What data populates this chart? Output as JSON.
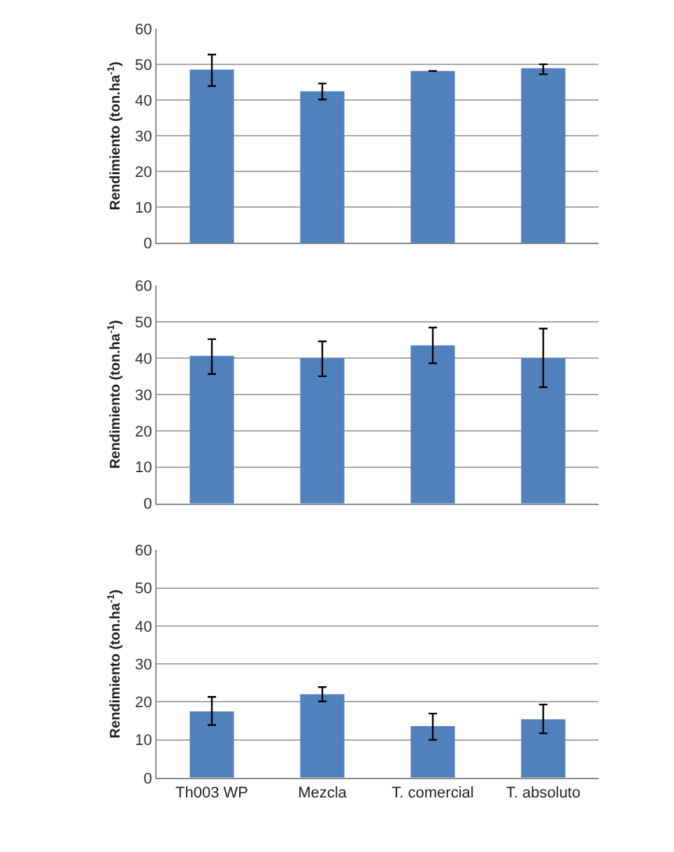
{
  "chart_data": [
    {
      "type": "bar",
      "ylabel": "Rendimiento (ton.ha$^{-1}$)",
      "categories": [
        null,
        null,
        null,
        null
      ],
      "values": [
        48.6,
        42.5,
        48.2,
        49.0
      ],
      "errors": [
        [
          44.0,
          52.8
        ],
        [
          40.2,
          44.7
        ],
        null,
        [
          47.3,
          50.1
        ]
      ],
      "color": "#4f81bd",
      "ylim": [
        0,
        60
      ],
      "yticks": [
        0,
        10,
        20,
        30,
        40,
        50,
        60
      ],
      "grid": "y",
      "tick_labels": "y"
    },
    {
      "type": "bar",
      "ylabel": "Rendimiento (ton.ha$^{-1}$)",
      "categories": [
        null,
        null,
        null,
        null
      ],
      "values": [
        40.6,
        40.0,
        43.5,
        40.0
      ],
      "errors": [
        [
          35.6,
          45.2
        ],
        [
          35.0,
          44.6
        ],
        [
          38.6,
          48.4
        ],
        [
          32.0,
          48.1
        ]
      ],
      "color": "#4f81bd",
      "ylim": [
        0,
        60
      ],
      "yticks": [
        0,
        10,
        20,
        30,
        40,
        50,
        60
      ],
      "grid": "y",
      "tick_labels": "y"
    },
    {
      "type": "bar",
      "ylabel": "Rendimiento (ton.ha$^{-1}$)",
      "categories": [
        "Th003 WP",
        "Mezcla",
        "T. comercial",
        "T. absoluto"
      ],
      "values": [
        17.5,
        22.0,
        13.6,
        15.4
      ],
      "errors": [
        [
          13.9,
          21.3
        ],
        [
          20.1,
          23.9
        ],
        [
          10.0,
          16.9
        ],
        [
          11.7,
          19.3
        ]
      ],
      "color": "#4f81bd",
      "ylim": [
        0,
        60
      ],
      "yticks": [
        0,
        10,
        20,
        30,
        40,
        50,
        60
      ],
      "grid": "y"
    }
  ]
}
